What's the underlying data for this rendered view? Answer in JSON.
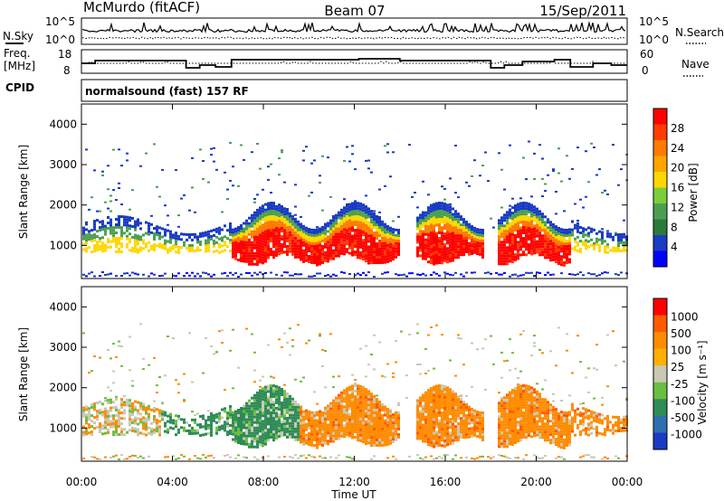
{
  "header": {
    "station": "McMurdo (fitACF)",
    "beam": "Beam 07",
    "date": "15/Sep/2011"
  },
  "noise_panel": {
    "left_label": "N.Sky",
    "right_label": "N.Search",
    "left_ticks": [
      "10^5",
      "10^0"
    ],
    "right_ticks": [
      "10^5",
      "10^0"
    ]
  },
  "freq_panel": {
    "left_label_line1": "Freq.",
    "left_label_line2": "[MHz]",
    "left_ticks": [
      "18",
      "8"
    ],
    "right_label": "Nave",
    "right_ticks": [
      "60",
      "0"
    ]
  },
  "cpid_panel": {
    "label": "CPID",
    "program": "normalsound (fast) 157 RF"
  },
  "chart_data": [
    {
      "type": "heatmap",
      "name": "power",
      "ylabel": "Slant Range [km]",
      "yticks": [
        "4000",
        "3000",
        "2000",
        "1000"
      ],
      "ylim": [
        180,
        4500
      ],
      "xlim_hours": [
        0,
        24
      ],
      "colorbar_label": "Power [dB]",
      "colorbar_ticks": [
        "28",
        "24",
        "20",
        "16",
        "12",
        "8",
        "4"
      ],
      "colorbar_colors": [
        "#0000ff",
        "#1a3bc4",
        "#2a7a3a",
        "#4aa050",
        "#7ccd3a",
        "#ffd700",
        "#ffa500",
        "#ff7a00",
        "#ff3b00",
        "#ff0000"
      ]
    },
    {
      "type": "heatmap",
      "name": "velocity",
      "ylabel": "Slant Range [km]",
      "yticks": [
        "4000",
        "3000",
        "2000",
        "1000"
      ],
      "ylim": [
        180,
        4500
      ],
      "xlim_hours": [
        0,
        24
      ],
      "colorbar_label": "Velocity [m s⁻¹]",
      "colorbar_ticks": [
        "1000",
        "500",
        "100",
        "25",
        "-25",
        "-100",
        "-500",
        "-1000"
      ],
      "colorbar_colors": [
        "#1a3bc4",
        "#2f6fb0",
        "#2e8b57",
        "#6abf40",
        "#c8c8b4",
        "#ffb000",
        "#ff8c00",
        "#ff5a00",
        "#ff0000"
      ]
    }
  ],
  "xaxis": {
    "ticks": [
      "00:00",
      "04:00",
      "08:00",
      "12:00",
      "16:00",
      "20:00",
      "00:00"
    ],
    "label": "Time UT"
  }
}
